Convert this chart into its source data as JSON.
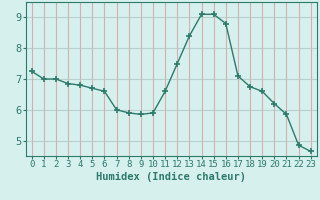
{
  "x": [
    0,
    1,
    2,
    3,
    4,
    5,
    6,
    7,
    8,
    9,
    10,
    11,
    12,
    13,
    14,
    15,
    16,
    17,
    18,
    19,
    20,
    21,
    22,
    23
  ],
  "y": [
    7.25,
    7.0,
    7.0,
    6.85,
    6.8,
    6.7,
    6.6,
    6.0,
    5.9,
    5.85,
    5.9,
    6.6,
    7.5,
    8.4,
    9.1,
    9.1,
    8.8,
    7.1,
    6.75,
    6.6,
    6.2,
    5.85,
    4.85,
    4.65
  ],
  "line_color": "#2d7a6a",
  "marker": "+",
  "bg_color": "#d6f0ee",
  "grid_h_color": "#b8d0ce",
  "grid_v_color": "#d4b0b0",
  "xlabel": "Humidex (Indice chaleur)",
  "ylim": [
    4.5,
    9.5
  ],
  "xlim": [
    -0.5,
    23.5
  ],
  "yticks": [
    5,
    6,
    7,
    8,
    9
  ],
  "xticks": [
    0,
    1,
    2,
    3,
    4,
    5,
    6,
    7,
    8,
    9,
    10,
    11,
    12,
    13,
    14,
    15,
    16,
    17,
    18,
    19,
    20,
    21,
    22,
    23
  ],
  "font_color": "#2d7a6a",
  "tick_font_size": 6.5,
  "label_font_size": 7.5
}
